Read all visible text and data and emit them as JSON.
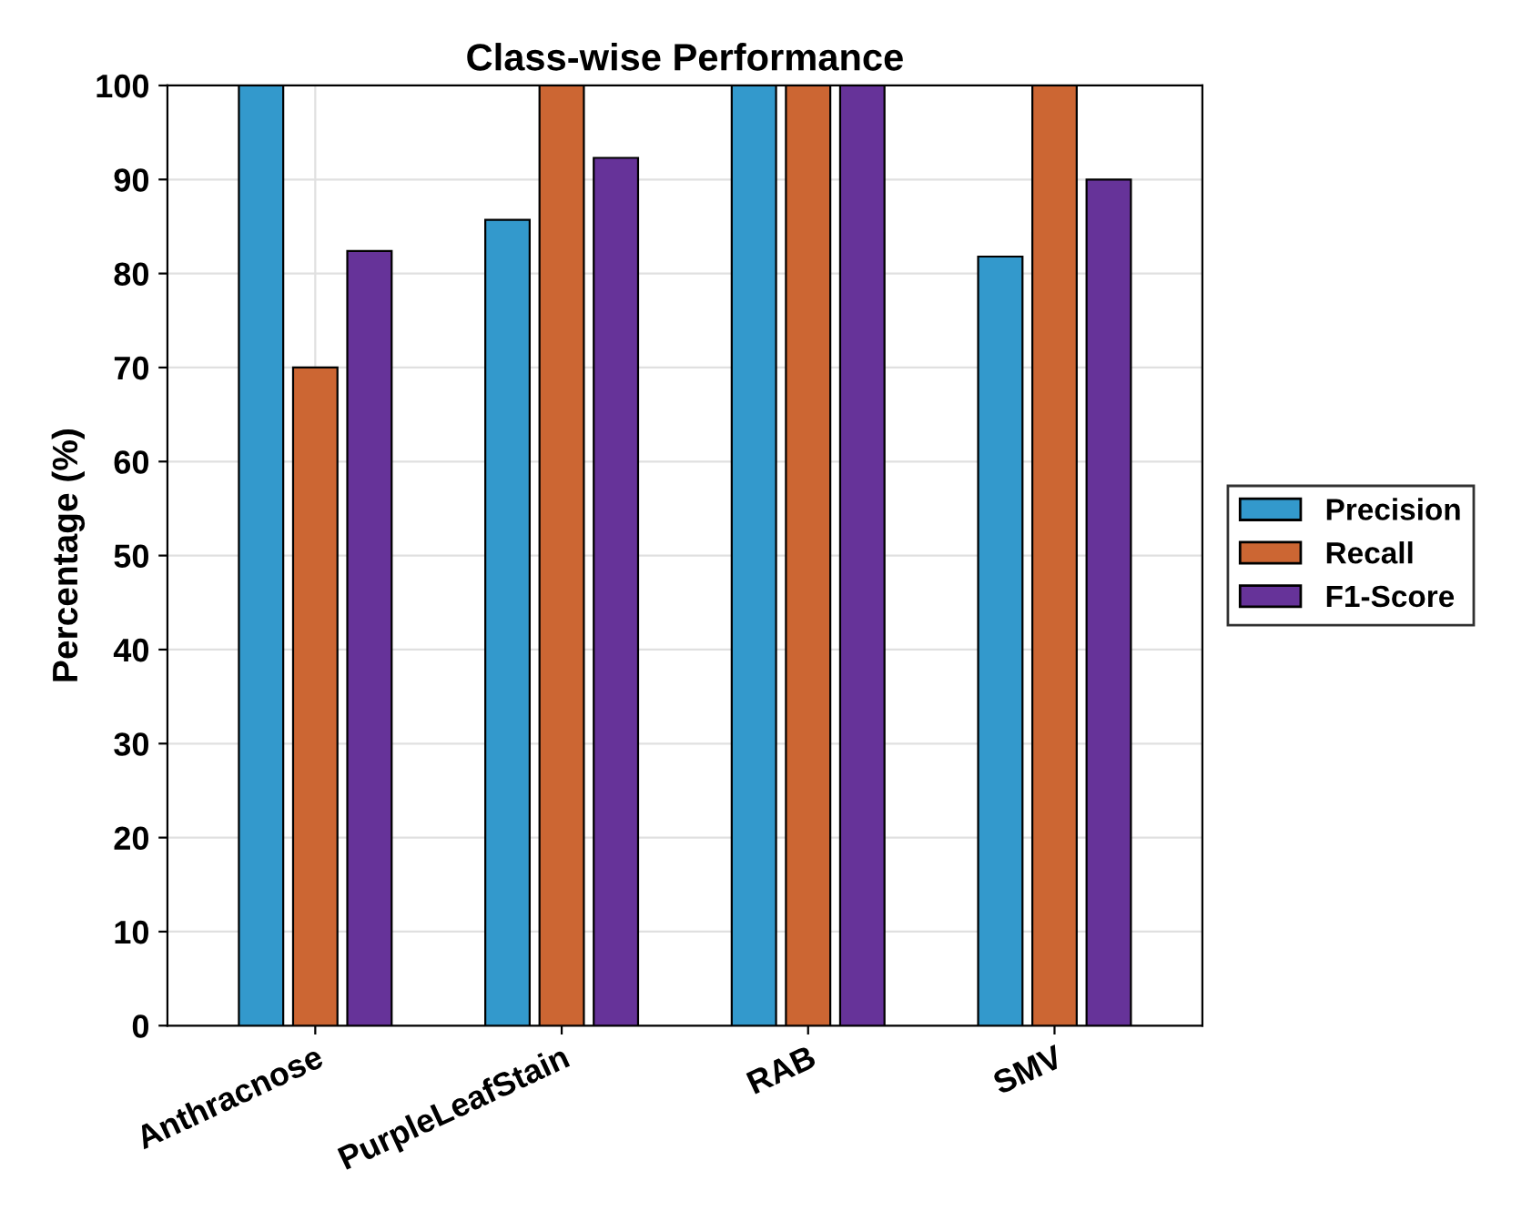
{
  "chart_data": {
    "type": "bar",
    "title": "Class-wise Performance",
    "ylabel": "Percentage (%)",
    "categories": [
      "Anthracnose",
      "PurpleLeafStain",
      "RAB",
      "SMV"
    ],
    "series": [
      {
        "name": "Precision",
        "color": "#3399cc",
        "values": [
          100,
          85.7,
          100,
          81.8
        ]
      },
      {
        "name": "Recall",
        "color": "#cc6633",
        "values": [
          70,
          100,
          100,
          100
        ]
      },
      {
        "name": "F1-Score",
        "color": "#663399",
        "values": [
          82.4,
          92.3,
          100,
          90
        ]
      }
    ],
    "ylim": [
      0,
      100
    ],
    "yticks": [
      0,
      10,
      20,
      30,
      40,
      50,
      60,
      70,
      80,
      90,
      100
    ],
    "grid": true,
    "legend": "right"
  }
}
